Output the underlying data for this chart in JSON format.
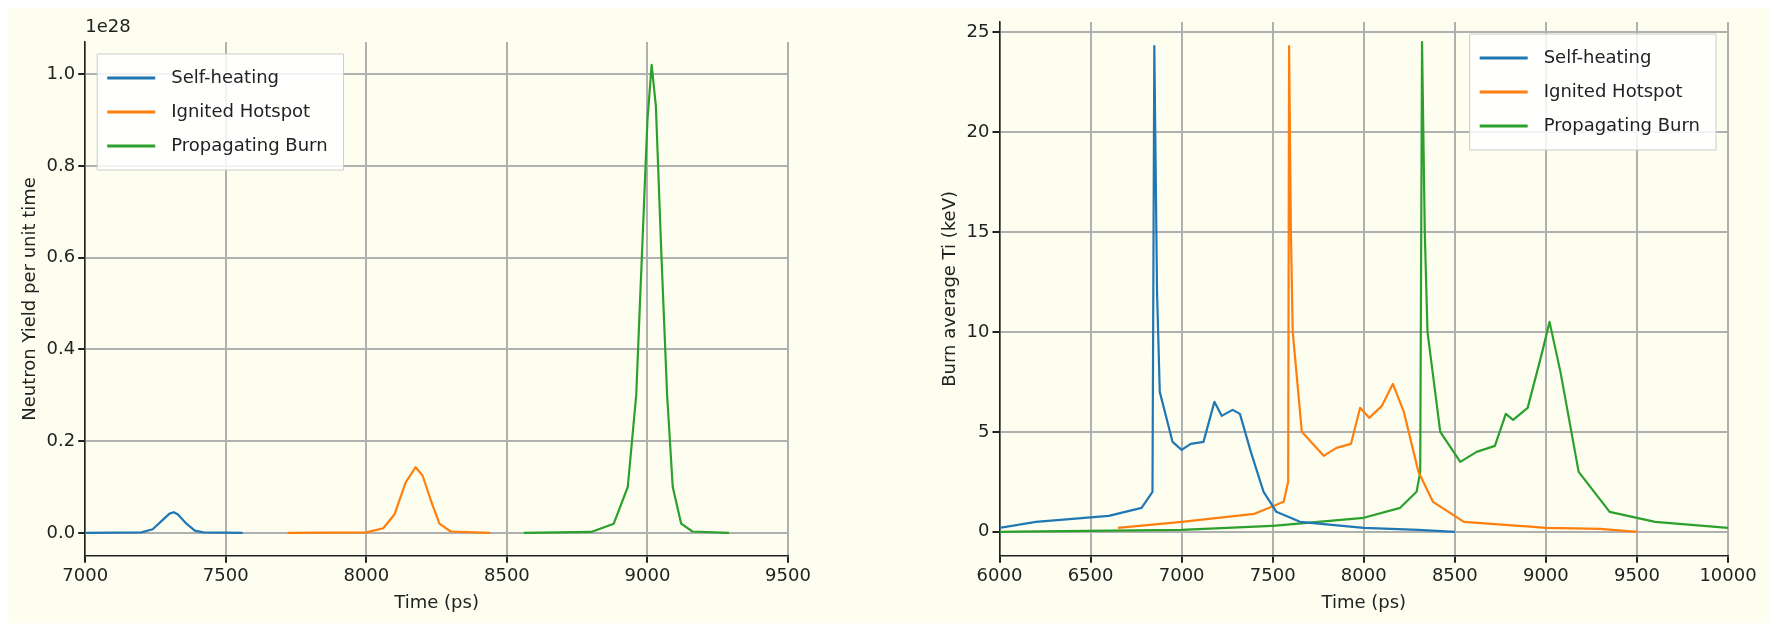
{
  "chart_data": [
    {
      "type": "line",
      "xlabel": "Time (ps)",
      "ylabel": "Neutron Yield per unit time",
      "annotations": [
        "1e28"
      ],
      "xlim": [
        7000,
        9500
      ],
      "xticks": [
        7000,
        7500,
        8000,
        8500,
        9000,
        9500
      ],
      "ylim": [
        -0.05,
        1.07
      ],
      "yticks": [
        {
          "value": 0,
          "label": "0.0"
        },
        {
          "value": 0.2,
          "label": "0.2"
        },
        {
          "value": 0.4,
          "label": "0.4"
        },
        {
          "value": 0.6,
          "label": "0.6"
        },
        {
          "value": 0.8,
          "label": "0.8"
        },
        {
          "value": 1,
          "label": "1.0"
        }
      ],
      "grid": true,
      "legend": "top left",
      "series": [
        {
          "name": "Self-heating",
          "color": "#1f77b4",
          "x": [
            7000,
            7200,
            7240,
            7270,
            7300,
            7315,
            7330,
            7360,
            7390,
            7420,
            7560
          ],
          "values": [
            0,
            0.001,
            0.008,
            0.025,
            0.042,
            0.045,
            0.04,
            0.02,
            0.005,
            0.001,
            0
          ]
        },
        {
          "name": "Ignited Hotspot",
          "color": "#ff7f0e",
          "x": [
            7720,
            8000,
            8060,
            8100,
            8140,
            8175,
            8200,
            8230,
            8260,
            8300,
            8440
          ],
          "values": [
            0,
            0.001,
            0.01,
            0.04,
            0.11,
            0.143,
            0.125,
            0.07,
            0.02,
            0.003,
            0
          ]
        },
        {
          "name": "Propagating Burn",
          "color": "#2ca02c",
          "x": [
            8560,
            8800,
            8880,
            8930,
            8960,
            8980,
            9000,
            9015,
            9030,
            9050,
            9070,
            9090,
            9120,
            9160,
            9290
          ],
          "values": [
            0,
            0.002,
            0.02,
            0.1,
            0.3,
            0.6,
            0.9,
            1.02,
            0.93,
            0.6,
            0.3,
            0.1,
            0.02,
            0.003,
            0
          ]
        }
      ]
    },
    {
      "type": "line",
      "xlabel": "Time (ps)",
      "ylabel": "Burn average Ti (keV)",
      "xlim": [
        6000,
        10000
      ],
      "xticks": [
        6000,
        6500,
        7000,
        7500,
        8000,
        8500,
        9000,
        9500,
        10000
      ],
      "ylim": [
        -1.2,
        25.5
      ],
      "yticks": [
        0,
        5,
        10,
        15,
        20,
        25
      ],
      "grid": true,
      "legend": "top right",
      "series": [
        {
          "name": "Self-heating",
          "color": "#1f77b4",
          "x": [
            6000,
            6200,
            6600,
            6780,
            6840,
            6850,
            6865,
            6880,
            6950,
            7000,
            7050,
            7120,
            7180,
            7220,
            7280,
            7320,
            7380,
            7450,
            7520,
            7650,
            8000,
            8300,
            8500
          ],
          "values": [
            0.2,
            0.5,
            0.8,
            1.2,
            2,
            24.3,
            12,
            7,
            4.5,
            4.1,
            4.4,
            4.5,
            6.5,
            5.8,
            6.1,
            5.9,
            4,
            2,
            1,
            0.5,
            0.2,
            0.1,
            0
          ]
        },
        {
          "name": "Ignited Hotspot",
          "color": "#ff7f0e",
          "x": [
            6650,
            7000,
            7400,
            7560,
            7585,
            7590,
            7600,
            7610,
            7660,
            7780,
            7850,
            7930,
            7980,
            8030,
            8100,
            8160,
            8220,
            8300,
            8380,
            8550,
            9000,
            9300,
            9500
          ],
          "values": [
            0.2,
            0.5,
            0.9,
            1.5,
            2.5,
            24.3,
            15,
            10,
            5,
            3.8,
            4.2,
            4.4,
            6.2,
            5.7,
            6.3,
            7.4,
            6,
            3,
            1.5,
            0.5,
            0.2,
            0.15,
            0
          ]
        },
        {
          "name": "Propagating Burn",
          "color": "#2ca02c",
          "x": [
            6000,
            7000,
            7500,
            8000,
            8200,
            8290,
            8310,
            8320,
            8335,
            8350,
            8420,
            8530,
            8620,
            8720,
            8780,
            8820,
            8900,
            8980,
            9020,
            9080,
            9180,
            9350,
            9600,
            10000
          ],
          "values": [
            0,
            0.1,
            0.3,
            0.7,
            1.2,
            2,
            3,
            24.5,
            15,
            10,
            5,
            3.5,
            4,
            4.3,
            5.9,
            5.6,
            6.2,
            9,
            10.5,
            8,
            3,
            1,
            0.5,
            0.2
          ]
        }
      ]
    }
  ]
}
